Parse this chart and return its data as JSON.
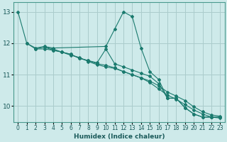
{
  "title": "",
  "xlabel": "Humidex (Indice chaleur)",
  "ylabel": "",
  "bg_color": "#ceeaea",
  "grid_color": "#aacccc",
  "line_color": "#1a7a6e",
  "xlim": [
    -0.5,
    23.5
  ],
  "ylim": [
    9.5,
    13.3
  ],
  "yticks": [
    10,
    11,
    12,
    13
  ],
  "xticks": [
    0,
    1,
    2,
    3,
    4,
    5,
    6,
    7,
    8,
    9,
    10,
    11,
    12,
    13,
    14,
    15,
    16,
    17,
    18,
    19,
    20,
    21,
    22,
    23
  ],
  "xticklabels": [
    "0",
    "1",
    "2",
    "3",
    "4",
    "5",
    "6",
    "7",
    "8",
    "9",
    "10",
    "11",
    "12",
    "13",
    "14",
    "15",
    "16",
    "17",
    "18",
    "19",
    "20",
    "21",
    "22",
    "23"
  ],
  "series": [
    {
      "x": [
        0,
        1,
        2,
        3,
        4,
        10,
        11,
        12,
        13,
        14,
        15,
        16,
        17,
        18,
        19,
        20,
        21,
        22,
        23
      ],
      "y": [
        13.0,
        12.0,
        11.85,
        11.9,
        11.85,
        11.9,
        12.45,
        13.0,
        12.85,
        11.85,
        11.1,
        10.85,
        10.25,
        10.25,
        9.95,
        9.75,
        9.65,
        9.65,
        9.65
      ]
    },
    {
      "x": [
        1,
        2,
        3,
        4,
        5,
        6,
        7,
        8,
        9,
        10,
        11,
        12,
        13,
        14,
        15,
        16,
        17,
        18,
        19,
        20,
        21,
        22,
        23
      ],
      "y": [
        12.0,
        11.82,
        11.82,
        11.78,
        11.72,
        11.65,
        11.52,
        11.45,
        11.38,
        11.82,
        11.35,
        11.25,
        11.15,
        11.05,
        10.95,
        10.72,
        10.25,
        10.25,
        9.95,
        9.75,
        9.65,
        9.65,
        9.65
      ]
    },
    {
      "x": [
        2,
        3,
        4,
        5,
        6,
        7,
        8,
        9,
        10,
        11,
        12,
        13,
        14,
        15,
        16,
        17,
        18,
        19,
        20,
        21,
        22,
        23
      ],
      "y": [
        11.82,
        11.88,
        11.78,
        11.72,
        11.65,
        11.52,
        11.45,
        11.35,
        11.3,
        11.22,
        11.1,
        11.0,
        10.9,
        10.8,
        10.65,
        10.45,
        10.32,
        10.18,
        9.98,
        9.82,
        9.72,
        9.68
      ]
    },
    {
      "x": [
        3,
        4,
        5,
        6,
        7,
        8,
        9,
        10,
        11,
        12,
        13,
        14,
        15,
        16,
        17,
        18,
        19,
        20,
        21,
        22,
        23
      ],
      "y": [
        11.88,
        11.82,
        11.72,
        11.62,
        11.55,
        11.42,
        11.32,
        11.25,
        11.2,
        11.1,
        11.0,
        10.9,
        10.75,
        10.55,
        10.35,
        10.22,
        10.05,
        9.88,
        9.75,
        9.65,
        9.62
      ]
    }
  ]
}
